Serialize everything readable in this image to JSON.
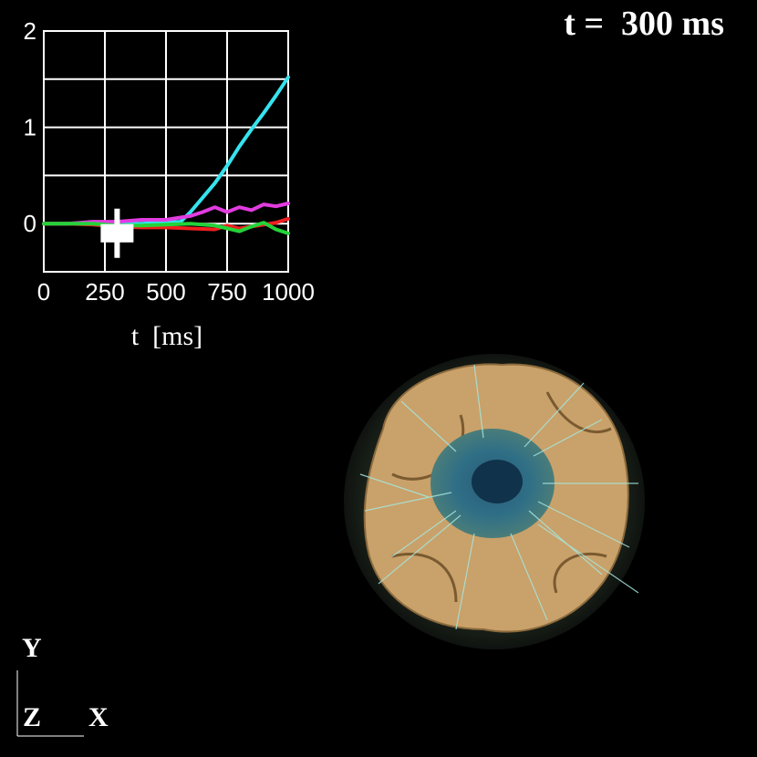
{
  "time_label": "t =  300 ms",
  "orientation_axes": {
    "vertical": "Y",
    "depth": "Z",
    "horizontal": "X"
  },
  "colors": {
    "cyan": "#36e3ef",
    "magenta": "#e23ce0",
    "red": "#f02020",
    "green": "#23d33a",
    "marker": "#ffffff"
  },
  "chart_data": {
    "type": "line",
    "xlabel": "t  [ms]",
    "ylabel": "",
    "xlim": [
      0,
      1000
    ],
    "ylim": [
      -0.5,
      2
    ],
    "x_ticks": [
      "0",
      "250",
      "500",
      "750",
      "1000"
    ],
    "y_ticks": [
      "2",
      "1",
      "0"
    ],
    "grid": true,
    "current_time_marker": {
      "x": 300,
      "y": -0.1
    },
    "series": [
      {
        "color": "#36e3ef",
        "x": [
          0,
          100,
          200,
          300,
          400,
          500,
          560,
          600,
          650,
          700,
          750,
          800,
          850,
          900,
          950,
          1000
        ],
        "values": [
          0,
          0,
          0.01,
          0,
          0,
          0.01,
          0.02,
          0.12,
          0.27,
          0.42,
          0.6,
          0.8,
          0.98,
          1.15,
          1.33,
          1.52
        ]
      },
      {
        "color": "#e23ce0",
        "x": [
          0,
          100,
          200,
          300,
          400,
          500,
          550,
          600,
          650,
          700,
          750,
          800,
          850,
          900,
          950,
          1000
        ],
        "values": [
          0,
          0,
          0.02,
          0.02,
          0.04,
          0.04,
          0.06,
          0.08,
          0.12,
          0.17,
          0.12,
          0.17,
          0.14,
          0.2,
          0.18,
          0.21
        ]
      },
      {
        "color": "#f02020",
        "x": [
          0,
          100,
          200,
          300,
          400,
          500,
          600,
          700,
          750,
          800,
          850,
          900,
          950,
          1000
        ],
        "values": [
          0,
          0,
          -0.01,
          -0.03,
          -0.04,
          -0.04,
          -0.05,
          -0.06,
          -0.02,
          -0.05,
          -0.03,
          -0.01,
          0.01,
          0.05
        ]
      },
      {
        "color": "#23d33a",
        "x": [
          0,
          100,
          200,
          300,
          400,
          500,
          600,
          700,
          800,
          850,
          900,
          950,
          1000
        ],
        "values": [
          0,
          0,
          0,
          -0.02,
          -0.02,
          -0.01,
          0,
          -0.02,
          -0.08,
          -0.03,
          0.01,
          -0.06,
          -0.1
        ]
      }
    ]
  }
}
